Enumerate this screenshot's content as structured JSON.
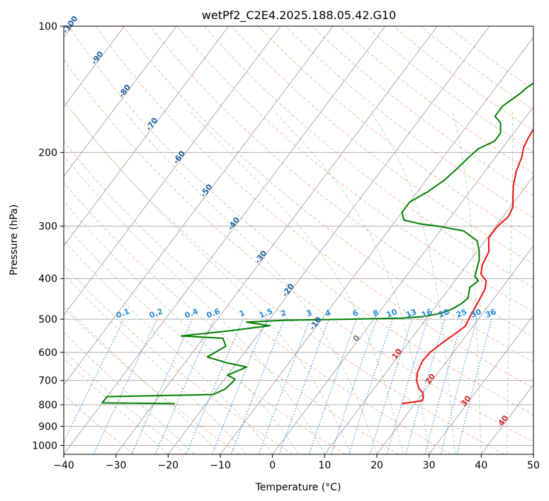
{
  "chart_data": {
    "type": "line",
    "title": "wetPf2_C2E4.2025.188.05.42.G10",
    "xlabel": "Temperature (°C)",
    "ylabel": "Pressure (hPa)",
    "xlim": [
      -40,
      50
    ],
    "ylim": [
      1050,
      100
    ],
    "yscale": "log",
    "x_ticks": [
      "−40",
      "−30",
      "−20",
      "−10",
      "0",
      "10",
      "20",
      "30",
      "40",
      "50"
    ],
    "x_tick_values": [
      -40,
      -30,
      -20,
      -10,
      0,
      10,
      20,
      30,
      40,
      50
    ],
    "y_ticks": [
      "100",
      "200",
      "300",
      "400",
      "500",
      "600",
      "700",
      "800",
      "900",
      "1000"
    ],
    "y_tick_values": [
      100,
      200,
      300,
      400,
      500,
      600,
      700,
      800,
      900,
      1000
    ],
    "grid": true,
    "isotherm_labels": [
      "-100",
      "-90",
      "-80",
      "-70",
      "-60",
      "-50",
      "-40",
      "-30",
      "-20",
      "-10",
      "0",
      "10",
      "20",
      "30",
      "40"
    ],
    "isotherm_label_values": [
      -100,
      -90,
      -80,
      -70,
      -60,
      -50,
      -40,
      -30,
      -20,
      -10,
      0,
      10,
      20,
      30,
      40
    ],
    "mixing_ratio_labels": [
      "0.1",
      "0.2",
      "0.4",
      "0.6",
      "1",
      "1.5",
      "2",
      "3",
      "4",
      "6",
      "8",
      "10",
      "13",
      "16",
      "20",
      "25",
      "30",
      "36"
    ],
    "mixing_ratio_values": [
      0.1,
      0.2,
      0.4,
      0.6,
      1,
      1.5,
      2,
      3,
      4,
      6,
      8,
      10,
      13,
      16,
      20,
      25,
      30,
      36
    ],
    "series": [
      {
        "color": "#ee1111",
        "points": [
          [
            17.5,
            795
          ],
          [
            21,
            782
          ],
          [
            20.8,
            770
          ],
          [
            20,
            750
          ],
          [
            18.5,
            730
          ],
          [
            17,
            700
          ],
          [
            16,
            670
          ],
          [
            15.3,
            630
          ],
          [
            15.5,
            600
          ],
          [
            16.5,
            570
          ],
          [
            17.5,
            545
          ],
          [
            18.5,
            520
          ],
          [
            18,
            490
          ],
          [
            17.5,
            455
          ],
          [
            17,
            425
          ],
          [
            16,
            405
          ],
          [
            14,
            390
          ],
          [
            13,
            372
          ],
          [
            12.3,
            345
          ],
          [
            10.3,
            320
          ],
          [
            10.3,
            300
          ],
          [
            11,
            285
          ],
          [
            10.5,
            270
          ],
          [
            9,
            255
          ],
          [
            7.5,
            240
          ],
          [
            6,
            222
          ],
          [
            5,
            205
          ],
          [
            4,
            195
          ],
          [
            3.5,
            185
          ],
          [
            3.2,
            175
          ],
          [
            3.5,
            160
          ],
          [
            3,
            150
          ],
          [
            2.2,
            140
          ],
          [
            2.3,
            128
          ],
          [
            3.8,
            118
          ],
          [
            5.3,
            110
          ],
          [
            6,
            105
          ],
          [
            8.5,
            100
          ]
        ],
        "colors": {}
      },
      {
        "color": "#008000",
        "points": [
          [
            -26,
            795
          ],
          [
            -40,
            792
          ],
          [
            -40,
            765
          ],
          [
            -33,
            762
          ],
          [
            -20,
            756
          ],
          [
            -18.5,
            735
          ],
          [
            -18,
            705
          ],
          [
            -18,
            695
          ],
          [
            -20,
            680
          ],
          [
            -17.5,
            650
          ],
          [
            -22,
            635
          ],
          [
            -26.5,
            615
          ],
          [
            -24.5,
            580
          ],
          [
            -26.2,
            555
          ],
          [
            -34.5,
            548
          ],
          [
            -26,
            533
          ],
          [
            -19,
            518
          ],
          [
            -24,
            508
          ],
          [
            -17,
            503
          ],
          [
            -5,
            500
          ],
          [
            5,
            497
          ],
          [
            9,
            493
          ],
          [
            12,
            484
          ],
          [
            13.5,
            473
          ],
          [
            14.5,
            460
          ],
          [
            15,
            445
          ],
          [
            13.8,
            420
          ],
          [
            14.5,
            405
          ],
          [
            13.2,
            395
          ],
          [
            12.5,
            380
          ],
          [
            11.7,
            362
          ],
          [
            10.3,
            343
          ],
          [
            8.5,
            325
          ],
          [
            4.5,
            308
          ],
          [
            -1,
            300
          ],
          [
            -5,
            296
          ],
          [
            -8.5,
            290
          ],
          [
            -10,
            278
          ],
          [
            -10,
            263
          ],
          [
            -8,
            248
          ],
          [
            -6.5,
            233
          ],
          [
            -5.7,
            218
          ],
          [
            -5.1,
            205
          ],
          [
            -4.5,
            196
          ],
          [
            -2.5,
            188
          ],
          [
            -2.5,
            180
          ],
          [
            -4,
            170
          ],
          [
            -6,
            164
          ],
          [
            -6,
            155
          ],
          [
            -4.5,
            145
          ],
          [
            -4,
            140
          ],
          [
            -2,
            130
          ],
          [
            -0.5,
            118
          ],
          [
            1,
            107
          ],
          [
            2,
            100
          ]
        ],
        "colors": {}
      }
    ]
  }
}
